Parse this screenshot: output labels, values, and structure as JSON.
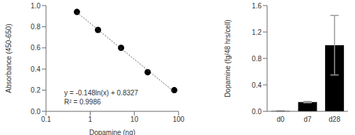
{
  "chart_data": [
    {
      "type": "scatter",
      "log": "x",
      "grid": false,
      "x_label": "Dopamine (ng)",
      "y_label": "Absorbance (450-650)",
      "xlim": [
        0.1,
        100
      ],
      "xticks": [
        0.1,
        1,
        10,
        100
      ],
      "ylim": [
        0,
        1
      ],
      "yticks": [
        {
          "value": 0,
          "label": "0.0"
        },
        0.2,
        0.4,
        0.6,
        0.8,
        {
          "value": 1,
          "label": "1.0"
        }
      ],
      "series": [
        {
          "type": "scatter",
          "marker": "circle",
          "color": "#000000",
          "x": [
            0.5,
            1.5,
            5,
            20,
            80
          ],
          "values": [
            0.94,
            0.77,
            0.6,
            0.37,
            0.2
          ]
        },
        {
          "type": "line",
          "line_style": "dotted",
          "color": "#555555",
          "x": [
            0.5,
            80
          ],
          "values": [
            0.935,
            0.184
          ]
        }
      ],
      "annotations": [
        "y = -0.148ln(x) + 0.8327",
        "R² = 0.9986"
      ]
    },
    {
      "type": "bar",
      "grid": false,
      "y_label": "Dopamine (fg/48 hrs/cell)",
      "categories": [
        "d0",
        "d7",
        "d28"
      ],
      "values": [
        0.005,
        0.14,
        1.0
      ],
      "errors": [
        0.005,
        0.01,
        0.45
      ],
      "color": "#000000",
      "ylim": [
        0,
        1.6
      ],
      "yticks": [
        {
          "value": 0,
          "label": "0.0"
        },
        0.4,
        0.8,
        1.2,
        1.6
      ]
    }
  ]
}
